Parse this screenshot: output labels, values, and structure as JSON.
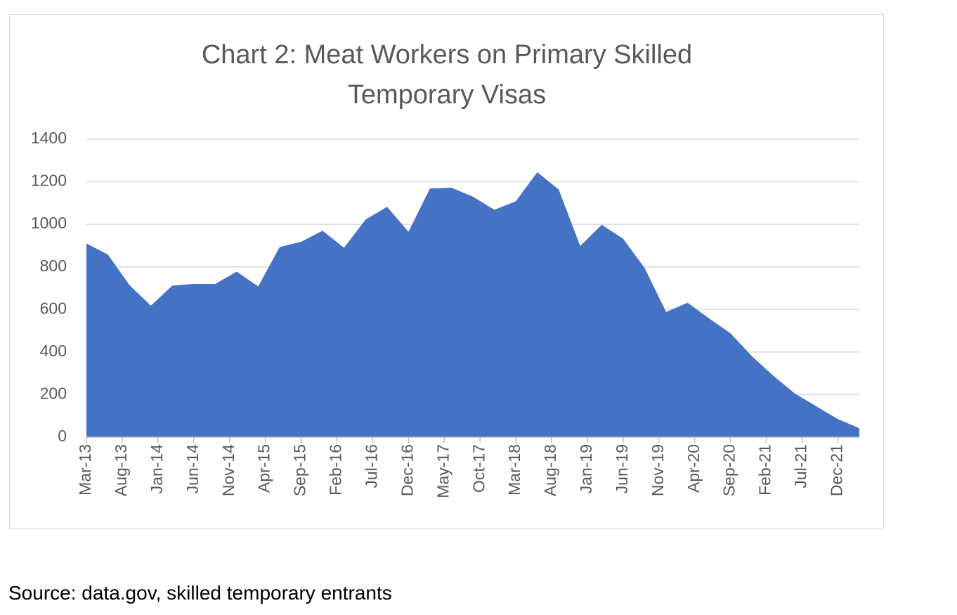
{
  "chart_data": {
    "type": "area",
    "title": "Chart 2: Meat Workers on Primary Skilled Temporary Visas",
    "x": [
      "2013-03",
      "2013-06",
      "2013-09",
      "2013-12",
      "2014-03",
      "2014-06",
      "2014-09",
      "2014-12",
      "2015-03",
      "2015-06",
      "2015-09",
      "2015-12",
      "2016-03",
      "2016-06",
      "2016-09",
      "2016-12",
      "2017-03",
      "2017-06",
      "2017-09",
      "2017-12",
      "2018-03",
      "2018-06",
      "2018-09",
      "2018-12",
      "2019-03",
      "2019-06",
      "2019-09",
      "2019-12",
      "2020-03",
      "2020-06",
      "2020-09",
      "2020-12",
      "2021-03",
      "2021-06",
      "2021-09",
      "2021-12",
      "2022-03"
    ],
    "values": [
      910,
      858,
      715,
      618,
      712,
      720,
      720,
      778,
      708,
      893,
      918,
      970,
      890,
      1022,
      1082,
      965,
      1168,
      1172,
      1130,
      1068,
      1108,
      1245,
      1163,
      898,
      998,
      932,
      795,
      588,
      632,
      558,
      488,
      380,
      288,
      205,
      145,
      85,
      42
    ],
    "color": "#4472c4",
    "xlim": [
      "2013-03",
      "2022-03"
    ],
    "xticks": [
      {
        "value": "2013-03",
        "label": "Mar-13"
      },
      {
        "value": "2013-08",
        "label": "Aug-13"
      },
      {
        "value": "2014-01",
        "label": "Jan-14"
      },
      {
        "value": "2014-06",
        "label": "Jun-14"
      },
      {
        "value": "2014-11",
        "label": "Nov-14"
      },
      {
        "value": "2015-04",
        "label": "Apr-15"
      },
      {
        "value": "2015-09",
        "label": "Sep-15"
      },
      {
        "value": "2016-02",
        "label": "Feb-16"
      },
      {
        "value": "2016-07",
        "label": "Jul-16"
      },
      {
        "value": "2016-12",
        "label": "Dec-16"
      },
      {
        "value": "2017-05",
        "label": "May-17"
      },
      {
        "value": "2017-10",
        "label": "Oct-17"
      },
      {
        "value": "2018-03",
        "label": "Mar-18"
      },
      {
        "value": "2018-08",
        "label": "Aug-18"
      },
      {
        "value": "2019-01",
        "label": "Jan-19"
      },
      {
        "value": "2019-06",
        "label": "Jun-19"
      },
      {
        "value": "2019-11",
        "label": "Nov-19"
      },
      {
        "value": "2020-04",
        "label": "Apr-20"
      },
      {
        "value": "2020-09",
        "label": "Sep-20"
      },
      {
        "value": "2021-02",
        "label": "Feb-21"
      },
      {
        "value": "2021-07",
        "label": "Jul-21"
      },
      {
        "value": "2021-12",
        "label": "Dec-21"
      }
    ],
    "ylim": [
      0,
      1400
    ],
    "yticks": [
      0,
      200,
      400,
      600,
      800,
      1000,
      1200,
      1400
    ],
    "grid": true
  },
  "source": "Source: data.gov, skilled temporary entrants"
}
